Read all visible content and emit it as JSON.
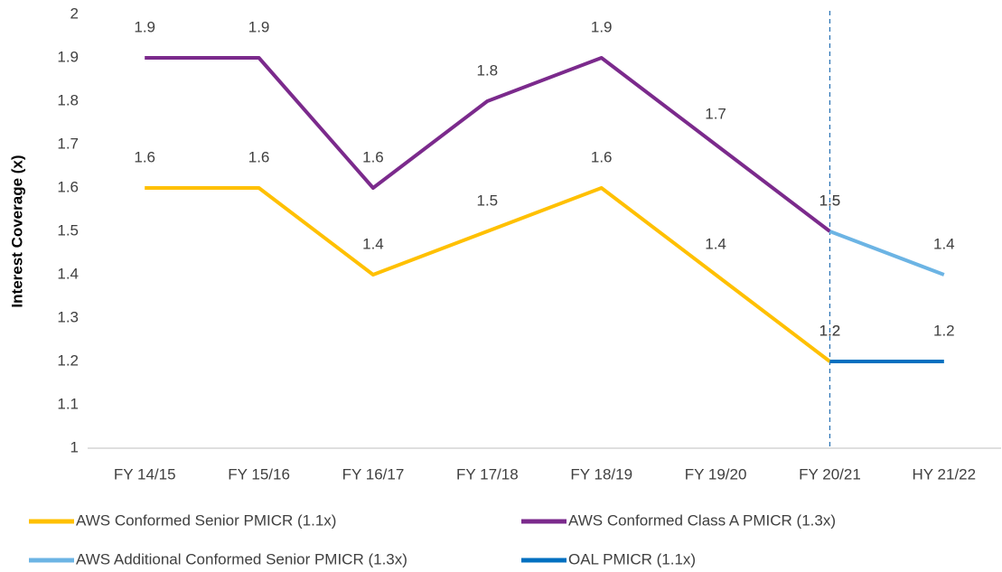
{
  "chart_data": {
    "type": "line",
    "y_label": "Interest Coverage (x)",
    "categories": [
      "FY 14/15",
      "FY 15/16",
      "FY 16/17",
      "FY 17/18",
      "FY 18/19",
      "FY 19/20",
      "FY 20/21",
      "HY 21/22"
    ],
    "series": [
      {
        "name": "AWS Conformed Senior PMICR (1.1x)",
        "color": "#FFC000",
        "values": [
          1.6,
          1.6,
          1.4,
          1.5,
          1.6,
          1.4,
          1.2,
          null
        ]
      },
      {
        "name": "AWS Conformed Class A PMICR (1.3x)",
        "color": "#7B2A8C",
        "values": [
          1.9,
          1.9,
          1.6,
          1.8,
          1.9,
          1.7,
          1.5,
          null
        ]
      },
      {
        "name": "AWS Additional Conformed Senior PMICR (1.3x)",
        "color": "#6CB4E4",
        "values": [
          null,
          null,
          null,
          null,
          null,
          null,
          1.5,
          1.4
        ]
      },
      {
        "name": "OAL PMICR (1.1x)",
        "color": "#0070C0",
        "values": [
          null,
          null,
          null,
          null,
          null,
          null,
          1.2,
          1.2
        ]
      }
    ],
    "ylim": [
      1,
      2
    ],
    "yticks": [
      1,
      1.1,
      1.2,
      1.3,
      1.4,
      1.5,
      1.6,
      1.7,
      1.8,
      1.9,
      2
    ],
    "grid": false,
    "legend": "bottom"
  }
}
